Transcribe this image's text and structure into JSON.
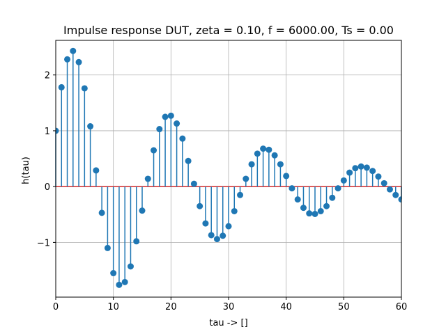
{
  "chart_data": {
    "type": "stem",
    "title": "Impulse response DUT, zeta = 0.10, f = 6000.00, Ts = 0.00",
    "xlabel": "tau -> []",
    "ylabel": "h(tau)",
    "xlim": [
      0,
      60
    ],
    "ylim": [
      -1.98,
      2.62
    ],
    "xticks": [
      0,
      10,
      20,
      30,
      40,
      50,
      60
    ],
    "yticks": [
      -1,
      0,
      1,
      2
    ],
    "ytick_labels": [
      "−1",
      "0",
      "1",
      "2"
    ],
    "grid": true,
    "baseline": 0,
    "colors": {
      "stem": "#1f77b4",
      "baseline": "#d62728",
      "grid": "#b0b0b0"
    },
    "x": [
      0,
      1,
      2,
      3,
      4,
      5,
      6,
      7,
      8,
      9,
      10,
      11,
      12,
      13,
      14,
      15,
      16,
      17,
      18,
      19,
      20,
      21,
      22,
      23,
      24,
      25,
      26,
      27,
      28,
      29,
      30,
      31,
      32,
      33,
      34,
      35,
      36,
      37,
      38,
      39,
      40,
      41,
      42,
      43,
      44,
      45,
      46,
      47,
      48,
      49,
      50,
      51,
      52,
      53,
      54,
      55,
      56,
      57,
      58,
      59,
      60
    ],
    "y": [
      1.0,
      1.78,
      2.28,
      2.43,
      2.23,
      1.76,
      1.08,
      0.29,
      -0.47,
      -1.1,
      -1.55,
      -1.76,
      -1.71,
      -1.43,
      -0.98,
      -0.43,
      0.14,
      0.65,
      1.03,
      1.25,
      1.27,
      1.13,
      0.86,
      0.46,
      0.05,
      -0.35,
      -0.66,
      -0.87,
      -0.94,
      -0.88,
      -0.71,
      -0.44,
      -0.15,
      0.14,
      0.4,
      0.59,
      0.68,
      0.66,
      0.56,
      0.4,
      0.19,
      -0.03,
      -0.23,
      -0.38,
      -0.48,
      -0.49,
      -0.44,
      -0.35,
      -0.2,
      -0.03,
      0.11,
      0.25,
      0.33,
      0.36,
      0.34,
      0.28,
      0.18,
      0.06,
      -0.05,
      -0.15,
      -0.23
    ]
  }
}
